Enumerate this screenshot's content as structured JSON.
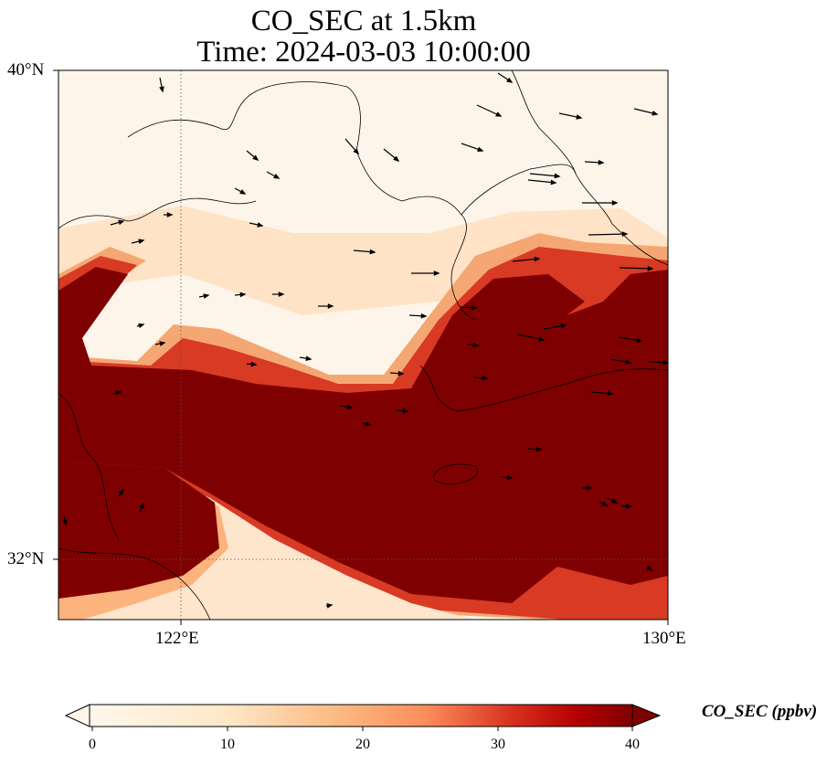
{
  "title": {
    "line1": "CO_SEC at 1.5km",
    "line2": "Time: 2024-03-03 10:00:00"
  },
  "map": {
    "lat_labels": [
      "40°N",
      "32°N"
    ],
    "lon_labels": [
      "122°E",
      "130°E"
    ],
    "lon_range": [
      120,
      130
    ],
    "lat_range": [
      31,
      40
    ],
    "gridlines": "dotted at 122°E and 32°N",
    "colormap": "OrRd"
  },
  "colorbar": {
    "label": "CO_SEC (ppbv)",
    "ticks": [
      "0",
      "10",
      "20",
      "30",
      "40"
    ],
    "range": [
      0,
      40
    ],
    "extend": "both"
  },
  "colors": {
    "low": "#fff7ec",
    "mid": "#fdbb84",
    "high": "#d7301f",
    "max": "#7f0000"
  }
}
